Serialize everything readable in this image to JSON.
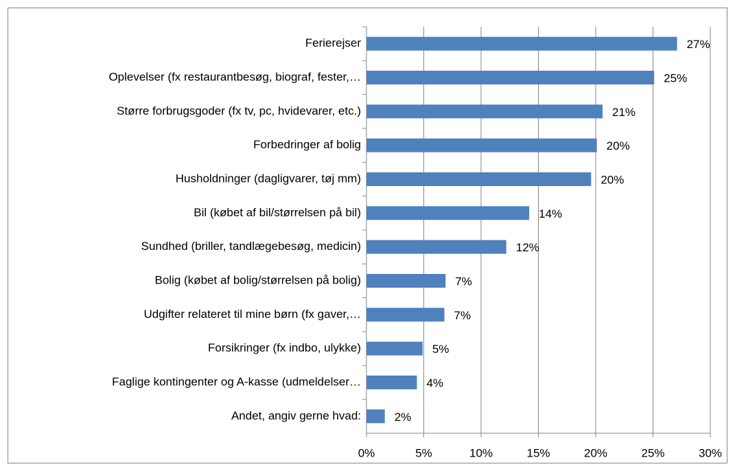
{
  "chart_data": {
    "type": "barh",
    "categories": [
      "Ferierejser",
      "Oplevelser (fx restaurantbesøg, biograf, fester,…",
      "Større forbrugsgoder (fx tv, pc, hvidevarer, etc.)",
      "Forbedringer af bolig",
      "Husholdninger (dagligvarer, tøj mm)",
      "Bil (købet af bil/størrelsen på bil)",
      "Sundhed (briller, tandlægebesøg, medicin)",
      "Bolig (købet af bolig/størrelsen på bolig)",
      "Udgifter relateret til mine børn (fx gaver,…",
      "Forsikringer (fx indbo, ulykke)",
      "Faglige kontingenter og A-kasse (udmeldelser…",
      "Andet, angiv gerne hvad:"
    ],
    "values": [
      27.1,
      25.1,
      20.6,
      20.1,
      19.6,
      14.2,
      12.2,
      6.9,
      6.8,
      4.9,
      4.4,
      1.6
    ],
    "value_labels": [
      "27%",
      "25%",
      "21%",
      "20%",
      "20%",
      "14%",
      "12%",
      "7%",
      "7%",
      "5%",
      "4%",
      "2%"
    ],
    "color": "#4f81bd",
    "xlim": [
      0,
      30
    ],
    "xticks": [
      {
        "value": 0,
        "label": "0%"
      },
      {
        "value": 5,
        "label": "5%"
      },
      {
        "value": 10,
        "label": "10%"
      },
      {
        "value": 15,
        "label": "15%"
      },
      {
        "value": 20,
        "label": "20%"
      },
      {
        "value": 25,
        "label": "25%"
      },
      {
        "value": 30,
        "label": "30%"
      }
    ],
    "grid": true
  }
}
